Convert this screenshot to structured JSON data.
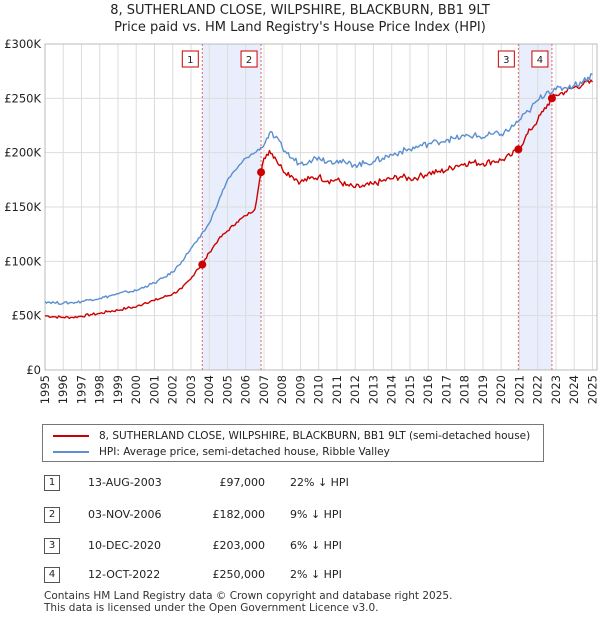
{
  "title_line1": "8, SUTHERLAND CLOSE, WILPSHIRE, BLACKBURN, BB1 9LT",
  "title_line2": "Price paid vs. HM Land Registry's House Price Index (HPI)",
  "colors": {
    "property": "#cc0000",
    "hpi": "#5b8fcf",
    "band": "#e8eefb",
    "grid": "#dddddd"
  },
  "chart_data": {
    "type": "line",
    "ylim": [
      0,
      300000
    ],
    "xlim": [
      1995.0,
      2025.25
    ],
    "yticks": [
      {
        "value": 0,
        "label": "£0"
      },
      {
        "value": 50000,
        "label": "£50K"
      },
      {
        "value": 100000,
        "label": "£100K"
      },
      {
        "value": 150000,
        "label": "£150K"
      },
      {
        "value": 200000,
        "label": "£200K"
      },
      {
        "value": 250000,
        "label": "£250K"
      },
      {
        "value": 300000,
        "label": "£300K"
      }
    ],
    "xticks": [
      "1995",
      "1996",
      "1997",
      "1998",
      "1999",
      "2000",
      "2001",
      "2002",
      "2003",
      "2004",
      "2005",
      "2006",
      "2007",
      "2008",
      "2009",
      "2010",
      "2011",
      "2012",
      "2013",
      "2014",
      "2015",
      "2016",
      "2017",
      "2018",
      "2019",
      "2020",
      "2021",
      "2022",
      "2023",
      "2024",
      "2025"
    ],
    "series": [
      {
        "name": "8, SUTHERLAND CLOSE, WILPSHIRE, BLACKBURN, BB1 9LT (semi-detached house)",
        "key": "property",
        "x": [
          1995.0,
          1995.5,
          1996.0,
          1996.5,
          1997.0,
          1997.5,
          1998.0,
          1998.5,
          1999.0,
          1999.5,
          2000.0,
          2000.5,
          2001.0,
          2001.5,
          2002.0,
          2002.5,
          2003.0,
          2003.3,
          2003.62,
          2004.0,
          2004.5,
          2005.0,
          2005.5,
          2006.0,
          2006.5,
          2006.84,
          2007.0,
          2007.3,
          2007.6,
          2008.0,
          2008.5,
          2009.0,
          2009.5,
          2010.0,
          2010.5,
          2011.0,
          2011.5,
          2012.0,
          2012.5,
          2013.0,
          2013.5,
          2014.0,
          2014.5,
          2015.0,
          2015.5,
          2016.0,
          2016.5,
          2017.0,
          2017.5,
          2018.0,
          2018.5,
          2019.0,
          2019.5,
          2020.0,
          2020.5,
          2020.94,
          2021.3,
          2021.6,
          2022.0,
          2022.3,
          2022.78,
          2023.0,
          2023.5,
          2024.0,
          2024.5,
          2025.0
        ],
        "values": [
          50000,
          49000,
          48500,
          48500,
          49500,
          51000,
          52000,
          54000,
          55000,
          57000,
          58000,
          62000,
          64000,
          67000,
          70000,
          75000,
          84000,
          92000,
          97000,
          108000,
          120000,
          128000,
          136000,
          142000,
          148000,
          182000,
          195000,
          202000,
          196000,
          185000,
          179000,
          173000,
          176000,
          178000,
          174000,
          175000,
          170000,
          168000,
          169000,
          171000,
          174000,
          176000,
          178000,
          176000,
          178000,
          181000,
          182000,
          184000,
          188000,
          190000,
          191000,
          190000,
          192000,
          193000,
          197000,
          203000,
          213000,
          221000,
          230000,
          238000,
          250000,
          253000,
          256000,
          260000,
          263000,
          265000
        ]
      },
      {
        "name": "HPI: Average price, semi-detached house, Ribble Valley",
        "key": "hpi",
        "x": [
          1995.0,
          1995.5,
          1996.0,
          1996.5,
          1997.0,
          1997.5,
          1998.0,
          1998.5,
          1999.0,
          1999.5,
          2000.0,
          2000.5,
          2001.0,
          2001.5,
          2002.0,
          2002.5,
          2003.0,
          2003.5,
          2004.0,
          2004.5,
          2005.0,
          2005.5,
          2006.0,
          2006.5,
          2007.0,
          2007.3,
          2007.6,
          2008.0,
          2008.5,
          2009.0,
          2009.5,
          2010.0,
          2010.5,
          2011.0,
          2011.5,
          2012.0,
          2012.5,
          2013.0,
          2013.5,
          2014.0,
          2014.5,
          2015.0,
          2015.5,
          2016.0,
          2016.5,
          2017.0,
          2017.5,
          2018.0,
          2018.5,
          2019.0,
          2019.5,
          2020.0,
          2020.5,
          2021.0,
          2021.5,
          2022.0,
          2022.5,
          2023.0,
          2023.5,
          2024.0,
          2024.5,
          2025.0
        ],
        "values": [
          63000,
          62000,
          61500,
          62000,
          63000,
          65000,
          66000,
          68000,
          70000,
          72000,
          73000,
          77000,
          80000,
          85000,
          90000,
          100000,
          112000,
          122000,
          135000,
          155000,
          175000,
          185000,
          195000,
          200000,
          207000,
          218000,
          214000,
          205000,
          195000,
          190000,
          193000,
          196000,
          192000,
          193000,
          190000,
          189000,
          190000,
          192000,
          195000,
          198000,
          201000,
          203000,
          206000,
          208000,
          210000,
          212000,
          213000,
          215000,
          216000,
          214000,
          217000,
          217000,
          222000,
          230000,
          238000,
          248000,
          256000,
          258000,
          260000,
          262000,
          266000,
          272000
        ]
      }
    ],
    "sales": [
      {
        "id": "1",
        "date": "13-AUG-2003",
        "x": 2003.62,
        "price": 97000,
        "price_label": "£97,000",
        "hpi": "22% ↓ HPI"
      },
      {
        "id": "2",
        "date": "03-NOV-2006",
        "x": 2006.84,
        "price": 182000,
        "price_label": "£182,000",
        "hpi": "9% ↓ HPI"
      },
      {
        "id": "3",
        "date": "10-DEC-2020",
        "x": 2020.94,
        "price": 203000,
        "price_label": "£203,000",
        "hpi": "6% ↓ HPI"
      },
      {
        "id": "4",
        "date": "12-OCT-2022",
        "x": 2022.78,
        "price": 250000,
        "price_label": "£250,000",
        "hpi": "2% ↓ HPI"
      }
    ]
  },
  "legend": {
    "property_label": "8, SUTHERLAND CLOSE, WILPSHIRE, BLACKBURN, BB1 9LT (semi-detached house)",
    "hpi_label": "HPI: Average price, semi-detached house, Ribble Valley"
  },
  "footer": {
    "line1": "Contains HM Land Registry data © Crown copyright and database right 2025.",
    "line2": "This data is licensed under the Open Government Licence v3.0."
  }
}
